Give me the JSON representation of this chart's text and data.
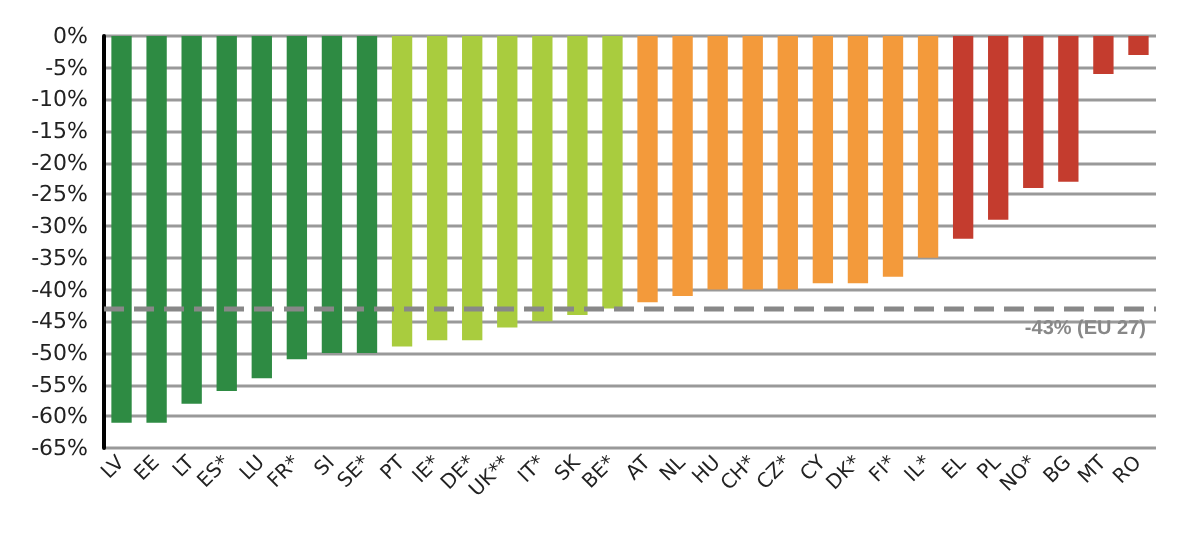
{
  "chart_data": {
    "type": "bar",
    "categories": [
      "LV",
      "EE",
      "LT",
      "ES*",
      "LU",
      "FR*",
      "SI",
      "SE*",
      "PT",
      "IE*",
      "DE*",
      "UK**",
      "IT*",
      "SK",
      "BE*",
      "AT",
      "NL",
      "HU",
      "CH*",
      "CZ*",
      "CY",
      "DK*",
      "FI*",
      "IL*",
      "EL",
      "PL",
      "NO*",
      "BG",
      "MT",
      "RO"
    ],
    "values": [
      -61,
      -61,
      -58,
      -56,
      -54,
      -51,
      -50,
      -50,
      -49,
      -48,
      -48,
      -46,
      -45,
      -44,
      -43,
      -42,
      -41,
      -40,
      -40,
      -40,
      -39,
      -39,
      -38,
      -35,
      -32,
      -29,
      -24,
      -23,
      -6,
      -3
    ],
    "colors": [
      "#2e8b43",
      "#2e8b43",
      "#2e8b43",
      "#2e8b43",
      "#2e8b43",
      "#2e8b43",
      "#2e8b43",
      "#2e8b43",
      "#a9cc3e",
      "#a9cc3e",
      "#a9cc3e",
      "#a9cc3e",
      "#a9cc3e",
      "#a9cc3e",
      "#a9cc3e",
      "#f39a3b",
      "#f39a3b",
      "#f39a3b",
      "#f39a3b",
      "#f39a3b",
      "#f39a3b",
      "#f39a3b",
      "#f39a3b",
      "#f39a3b",
      "#c43c2e",
      "#c43c2e",
      "#c43c2e",
      "#c43c2e",
      "#c43c2e",
      "#c43c2e"
    ],
    "ylim": [
      -65,
      0
    ],
    "yticks": [
      {
        "value": 0,
        "label": "0%"
      },
      {
        "value": -5,
        "label": "-5%"
      },
      {
        "value": -10,
        "label": "-10%"
      },
      {
        "value": -15,
        "label": "-15%"
      },
      {
        "value": -20,
        "label": "-20%"
      },
      {
        "value": -25,
        "label": "-25%"
      },
      {
        "value": -30,
        "label": "-30%"
      },
      {
        "value": -35,
        "label": "-35%"
      },
      {
        "value": -40,
        "label": "-40%"
      },
      {
        "value": -45,
        "label": "-45%"
      },
      {
        "value": -50,
        "label": "-50%"
      },
      {
        "value": -55,
        "label": "-55%"
      },
      {
        "value": -60,
        "label": "-60%"
      },
      {
        "value": -65,
        "label": "-65%"
      }
    ],
    "grid": "y",
    "ref_lines": [
      {
        "axis": "y",
        "value": -43,
        "label": "-43% (EU 27)",
        "color": "#888888",
        "line_style": "dashed"
      }
    ]
  }
}
